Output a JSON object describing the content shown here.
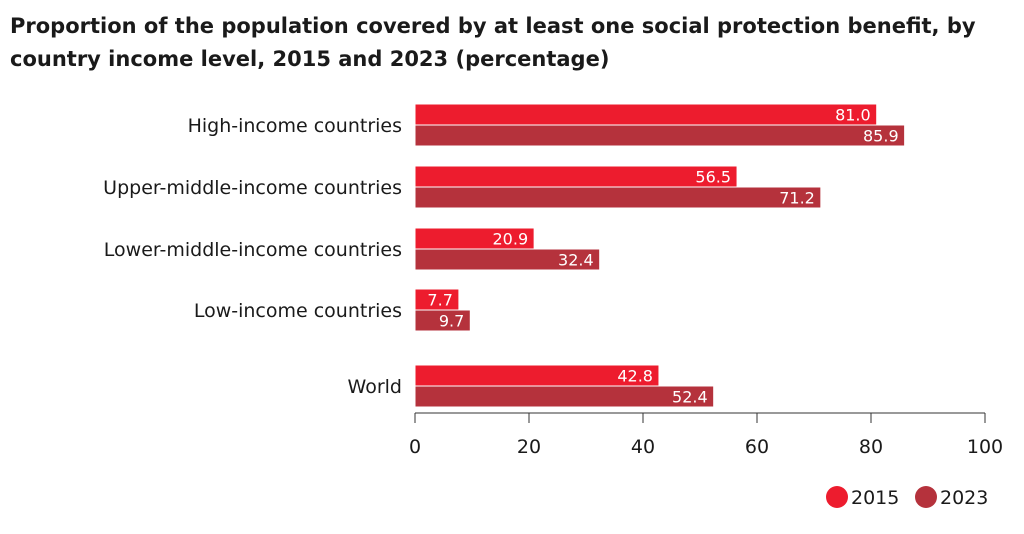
{
  "chart_data": {
    "type": "bar",
    "orientation": "horizontal",
    "title": "Proportion of the population covered by at least one social protection benefit, by country income level, 2015 and 2023 (percentage)",
    "xlabel": "",
    "ylabel": "",
    "xlim": [
      0,
      100
    ],
    "xticks": [
      0,
      20,
      40,
      60,
      80,
      100
    ],
    "grid": false,
    "legend_position": "bottom-right",
    "categories": [
      "High-income countries",
      "Upper-middle-income countries",
      "Lower-middle-income countries",
      "Low-income countries",
      "World"
    ],
    "series": [
      {
        "name": "2015",
        "color": "#ed1c2e",
        "values": [
          81.0,
          56.5,
          20.9,
          7.7,
          42.8
        ]
      },
      {
        "name": "2023",
        "color": "#b5323c",
        "values": [
          85.9,
          71.2,
          32.4,
          9.7,
          52.4
        ]
      }
    ]
  }
}
